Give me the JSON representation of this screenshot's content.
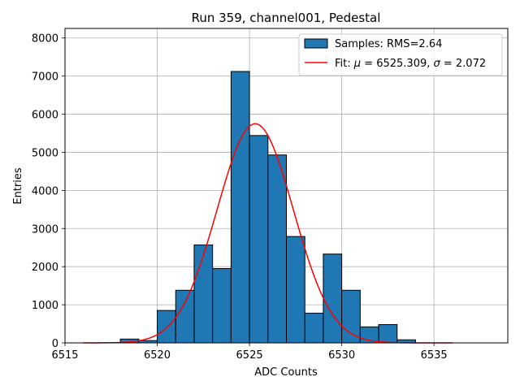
{
  "chart_data": {
    "type": "bar",
    "title": "Run 359, channel001, Pedestal",
    "xlabel": "ADC Counts",
    "ylabel": "Entries",
    "xlim": [
      6515,
      6539
    ],
    "ylim": [
      0,
      8250
    ],
    "xticks": [
      6515,
      6520,
      6525,
      6530,
      6535
    ],
    "yticks": [
      0,
      1000,
      2000,
      3000,
      4000,
      5000,
      6000,
      7000,
      8000
    ],
    "grid": true,
    "legend_position": "top-right",
    "histogram": {
      "name": "Samples: RMS=2.64",
      "color": "#1f77b4",
      "bin_edges": [
        6518,
        6519,
        6520,
        6521,
        6522,
        6523,
        6524,
        6525,
        6526,
        6527,
        6528,
        6529,
        6530,
        6531,
        6532,
        6533,
        6534
      ],
      "counts": [
        100,
        60,
        850,
        1380,
        2570,
        1950,
        7120,
        5440,
        4930,
        2790,
        780,
        2330,
        1380,
        420,
        480,
        80
      ]
    },
    "fit": {
      "label_prefix": "Fit: ",
      "mu_symbol": "μ",
      "mu_text": " = 6525.309, ",
      "sigma_symbol": "σ",
      "sigma_text": " = 2.072",
      "color": "#ff0000",
      "mu": 6525.309,
      "sigma": 2.072,
      "amplitude": 5750,
      "x_range": [
        6516,
        6536
      ]
    }
  }
}
